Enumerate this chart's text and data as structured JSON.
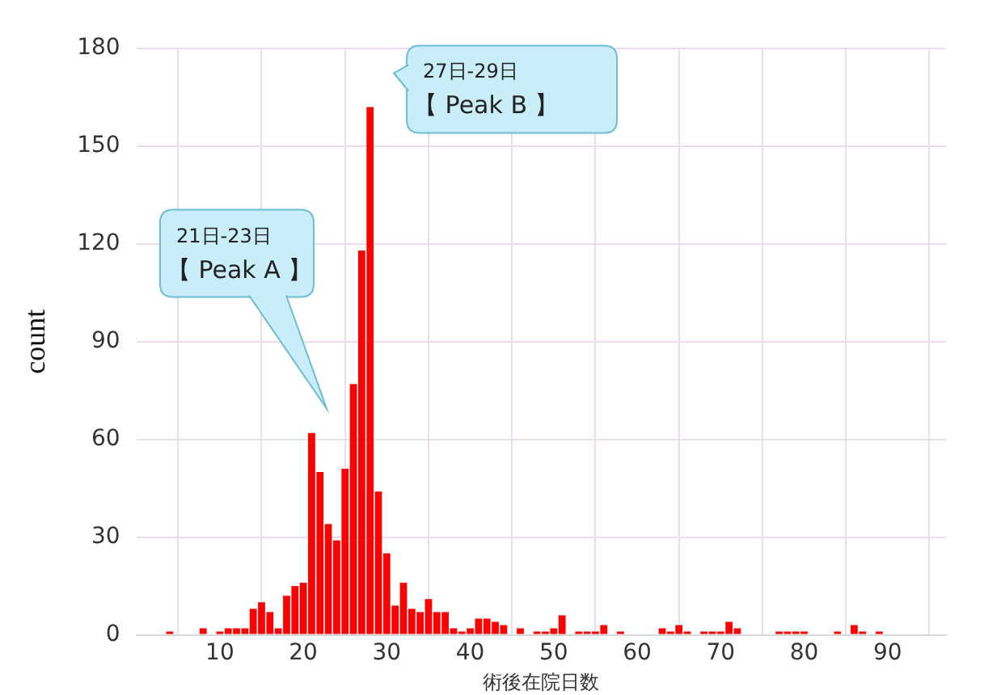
{
  "chart_data": {
    "type": "bar",
    "xlabel": "術後在院日数",
    "ylabel": "count",
    "x": [
      4,
      8,
      10,
      11,
      12,
      13,
      14,
      15,
      16,
      17,
      18,
      19,
      20,
      21,
      22,
      23,
      24,
      25,
      26,
      27,
      28,
      29,
      30,
      31,
      32,
      33,
      34,
      35,
      36,
      37,
      38,
      39,
      40,
      41,
      42,
      43,
      44,
      46,
      48,
      49,
      50,
      51,
      53,
      54,
      55,
      56,
      58,
      63,
      64,
      65,
      66,
      68,
      69,
      70,
      71,
      72,
      77,
      78,
      79,
      80,
      84,
      86,
      87,
      89
    ],
    "values": [
      1,
      2,
      1,
      2,
      2,
      2,
      8,
      10,
      7,
      2,
      12,
      15,
      16,
      62,
      50,
      34,
      29,
      51,
      77,
      118,
      162,
      44,
      25,
      9,
      16,
      8,
      7,
      11,
      7,
      7,
      2,
      1,
      2,
      5,
      5,
      4,
      3,
      2,
      1,
      1,
      2,
      6,
      1,
      1,
      1,
      3,
      1,
      2,
      1,
      3,
      1,
      1,
      1,
      1,
      4,
      2,
      1,
      1,
      1,
      1,
      1,
      3,
      1,
      1
    ],
    "color": "#ff0000",
    "xlim": [
      0,
      97
    ],
    "xticks": [
      10,
      20,
      30,
      40,
      50,
      60,
      70,
      80,
      90
    ],
    "ylim": [
      0,
      180
    ],
    "yticks": [
      0,
      30,
      60,
      90,
      120,
      150,
      180
    ],
    "grid": true,
    "annotations": [
      "21日-23日",
      "【 Peak A 】",
      "27日-29日",
      "【 Peak B 】"
    ]
  }
}
